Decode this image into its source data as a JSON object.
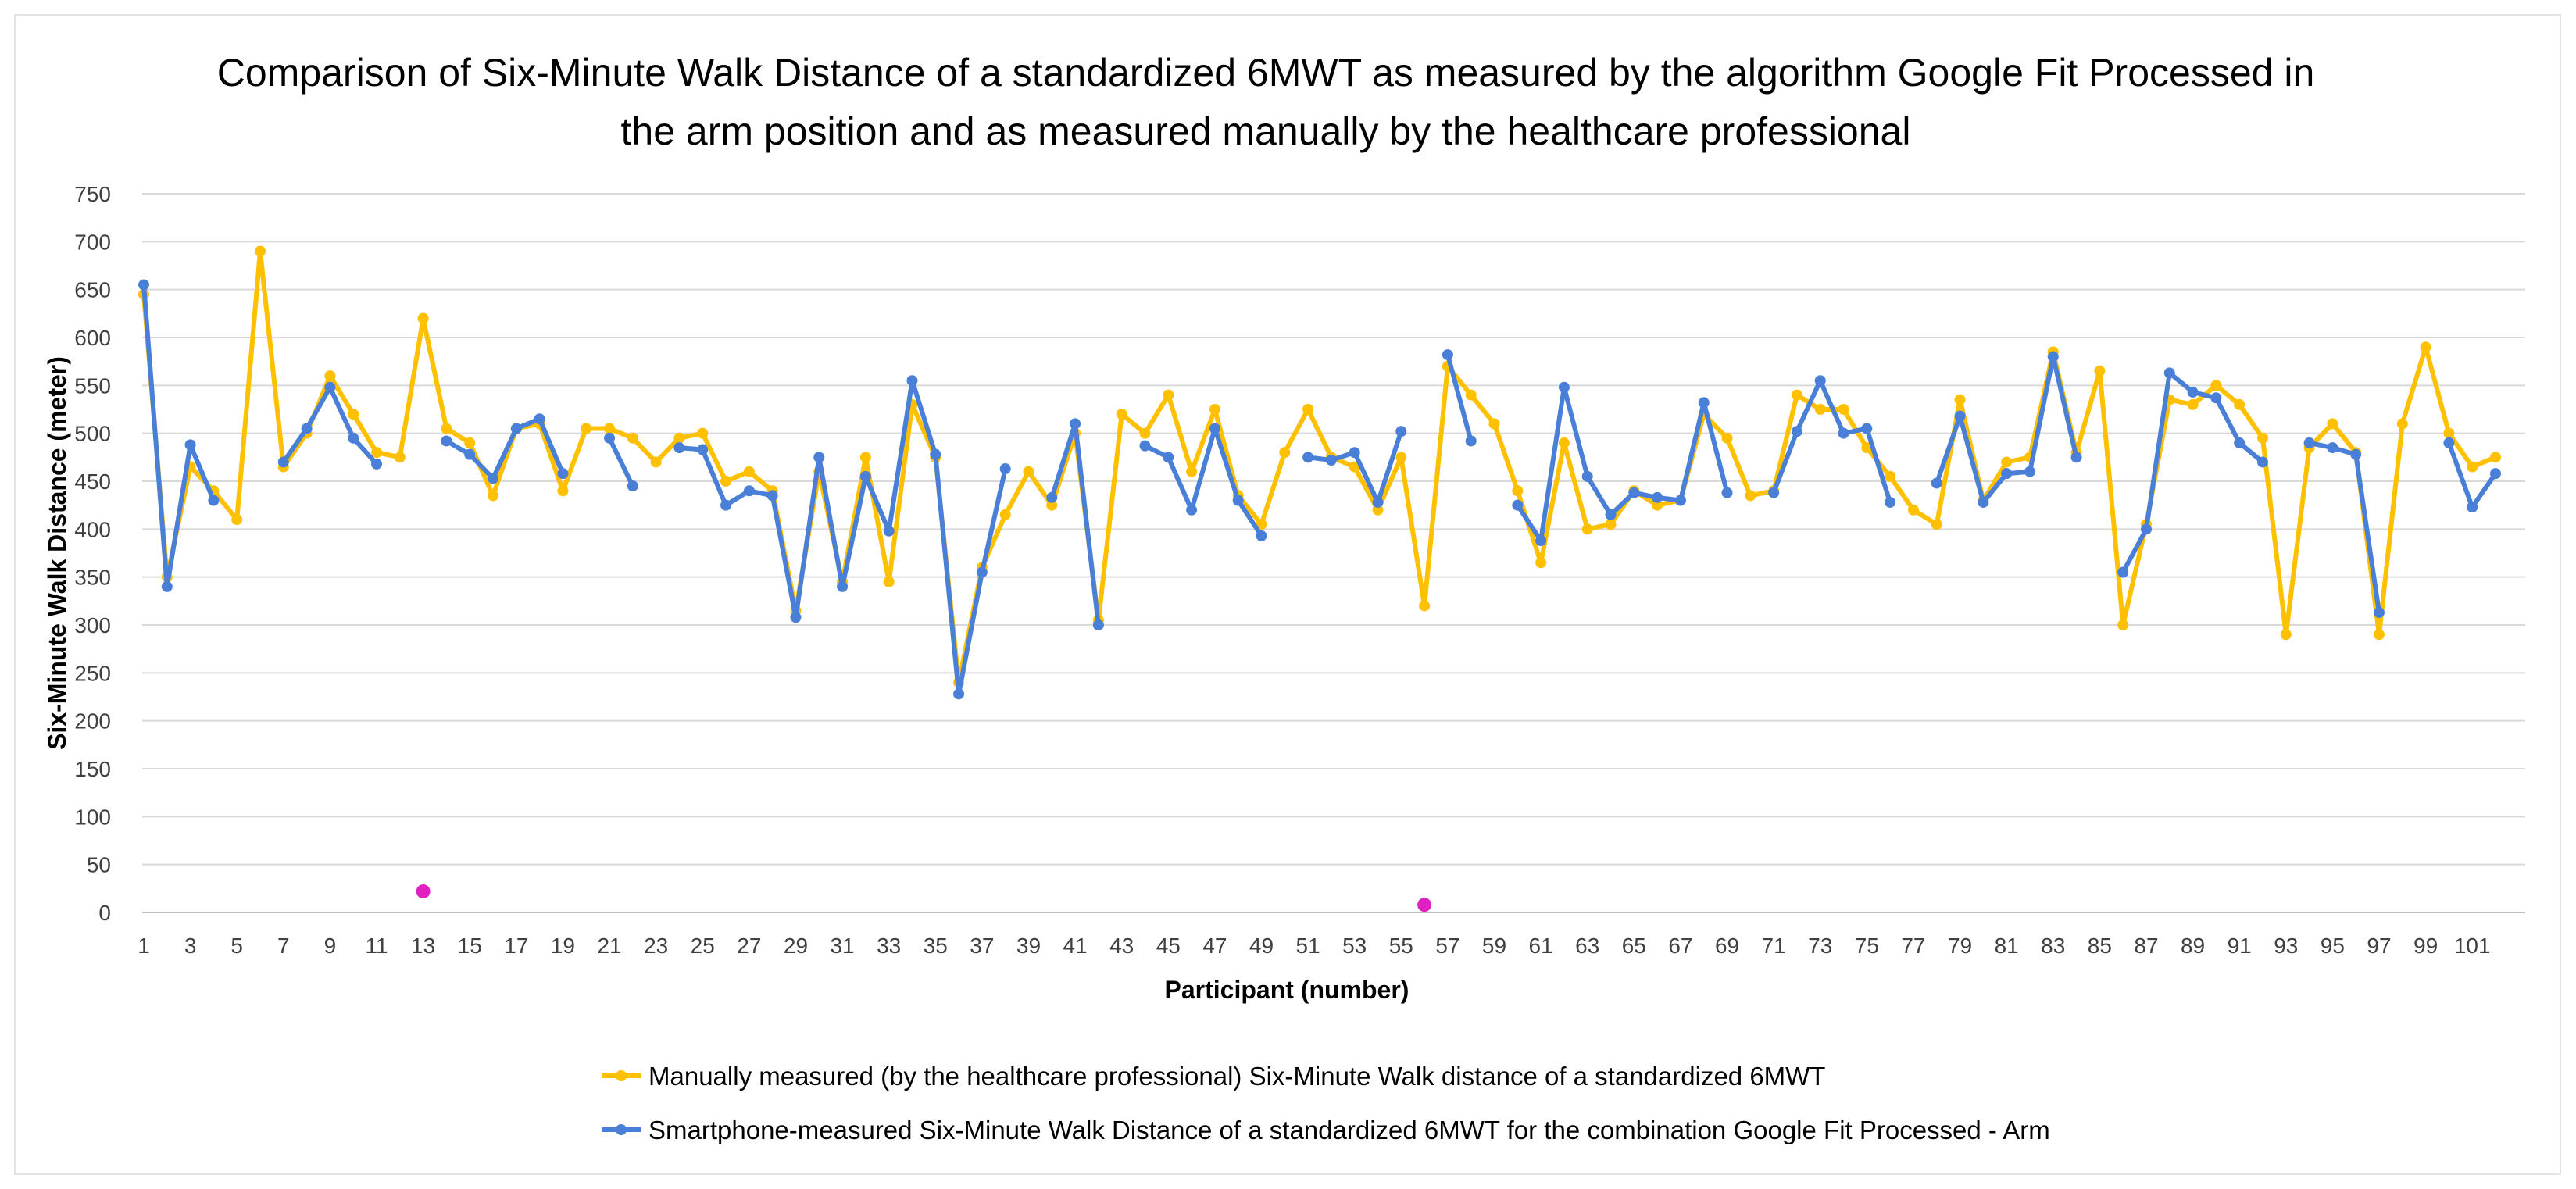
{
  "chart_data": {
    "type": "line",
    "title_lines": [
      "Comparison of Six-Minute Walk Distance of a standardized 6MWT as measured by the algorithm Google Fit Processed in",
      "the arm position and as measured manually by the healthcare professional"
    ],
    "xlabel": "Participant (number)",
    "ylabel": "Six-Minute Walk Distance (meter)",
    "ylim": [
      0,
      750
    ],
    "yticks": [
      0,
      50,
      100,
      150,
      200,
      250,
      300,
      350,
      400,
      450,
      500,
      550,
      600,
      650,
      700,
      750
    ],
    "xticks": [
      1,
      3,
      5,
      7,
      9,
      11,
      13,
      15,
      17,
      19,
      21,
      23,
      25,
      27,
      29,
      31,
      33,
      35,
      37,
      39,
      41,
      43,
      45,
      47,
      49,
      51,
      53,
      55,
      57,
      59,
      61,
      63,
      65,
      67,
      69,
      71,
      73,
      75,
      77,
      79,
      81,
      83,
      85,
      87,
      89,
      91,
      93,
      95,
      97,
      99,
      101
    ],
    "x": [
      1,
      2,
      3,
      4,
      5,
      6,
      7,
      8,
      9,
      10,
      11,
      12,
      13,
      14,
      15,
      16,
      17,
      18,
      19,
      20,
      21,
      22,
      23,
      24,
      25,
      26,
      27,
      28,
      29,
      30,
      31,
      32,
      33,
      34,
      35,
      36,
      37,
      38,
      39,
      40,
      41,
      42,
      43,
      44,
      45,
      46,
      47,
      48,
      49,
      50,
      51,
      52,
      53,
      54,
      55,
      56,
      57,
      58,
      59,
      60,
      61,
      62,
      63,
      64,
      65,
      66,
      67,
      68,
      69,
      70,
      71,
      72,
      73,
      74,
      75,
      76,
      77,
      78,
      79,
      80,
      81,
      82,
      83,
      84,
      85,
      86,
      87,
      88,
      89,
      90,
      91,
      92,
      93,
      94,
      95,
      96,
      97,
      98,
      99,
      100,
      101,
      102
    ],
    "grid": true,
    "legend_position": "bottom",
    "series": [
      {
        "name": "Manually measured (by the healthcare professional) Six-Minute Walk distance of a standardized 6MWT",
        "color": "#FFC000",
        "values": [
          645,
          350,
          465,
          440,
          410,
          690,
          465,
          500,
          560,
          520,
          480,
          475,
          620,
          505,
          490,
          435,
          505,
          510,
          440,
          505,
          505,
          495,
          470,
          495,
          500,
          450,
          460,
          440,
          315,
          460,
          345,
          475,
          345,
          530,
          475,
          240,
          360,
          415,
          460,
          425,
          500,
          305,
          520,
          500,
          540,
          460,
          525,
          435,
          405,
          480,
          525,
          475,
          465,
          420,
          475,
          320,
          570,
          540,
          510,
          440,
          365,
          490,
          400,
          405,
          440,
          425,
          430,
          520,
          495,
          435,
          440,
          540,
          525,
          525,
          485,
          455,
          420,
          405,
          535,
          430,
          470,
          475,
          585,
          480,
          565,
          300,
          405,
          535,
          530,
          550,
          530,
          495,
          290,
          485,
          510,
          480,
          290,
          510,
          590,
          500,
          465,
          475
        ]
      },
      {
        "name": "Smartphone-measured Six-Minute Walk Distance of a standardized 6MWT for the combination Google Fit Processed - Arm",
        "color": "#4A7FD8",
        "values": [
          655,
          340,
          488,
          430,
          null,
          null,
          470,
          505,
          548,
          495,
          468,
          null,
          null,
          492,
          478,
          453,
          505,
          515,
          458,
          null,
          495,
          445,
          null,
          485,
          483,
          425,
          440,
          435,
          308,
          475,
          340,
          455,
          398,
          555,
          478,
          228,
          355,
          463,
          null,
          433,
          510,
          300,
          null,
          487,
          475,
          420,
          505,
          430,
          393,
          null,
          475,
          472,
          480,
          428,
          502,
          null,
          582,
          492,
          null,
          425,
          388,
          548,
          455,
          415,
          438,
          433,
          430,
          532,
          438,
          null,
          438,
          502,
          555,
          500,
          505,
          428,
          null,
          448,
          518,
          428,
          458,
          460,
          580,
          475,
          null,
          355,
          400,
          563,
          543,
          537,
          490,
          470,
          null,
          490,
          485,
          478,
          313,
          null,
          null,
          490,
          423,
          458
        ]
      }
    ],
    "stray_points": [
      {
        "x": 13,
        "y": 22,
        "color": "#E020C0"
      },
      {
        "x": 56,
        "y": 8,
        "color": "#E020C0"
      }
    ]
  }
}
